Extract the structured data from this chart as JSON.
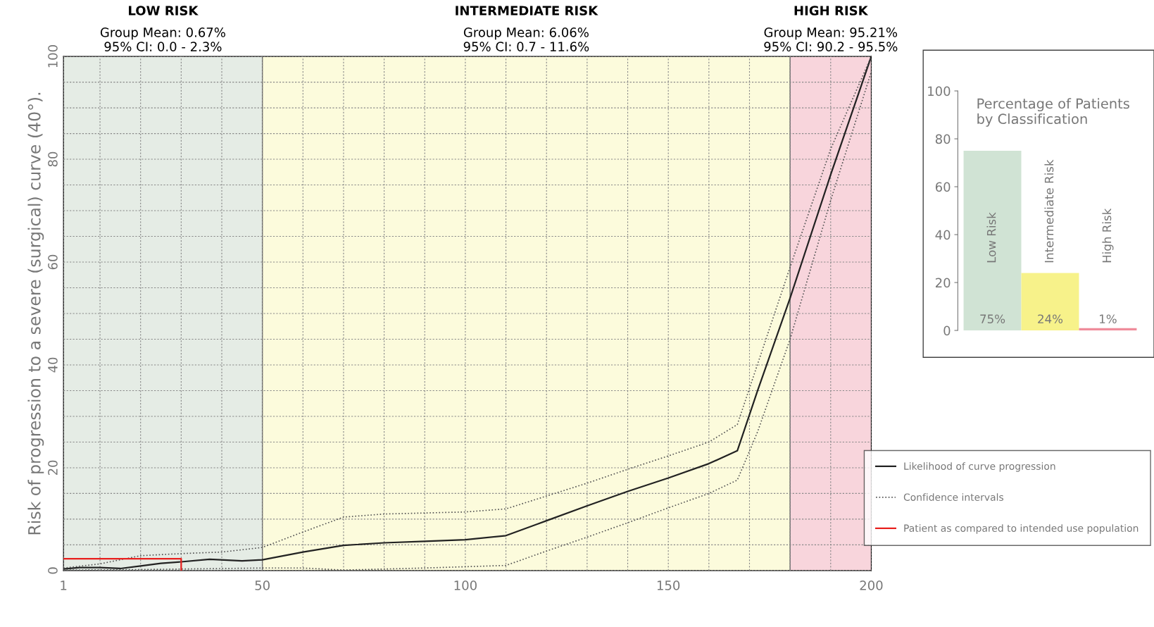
{
  "chart_data": [
    {
      "type": "line",
      "ylabel": "Risk of progression to a severe (surgical) curve (40°).",
      "xlim": [
        1,
        200
      ],
      "xticks": [
        1,
        {
          "value": 10,
          "label": null
        },
        {
          "value": 20,
          "label": null
        },
        {
          "value": 30,
          "label": null
        },
        {
          "value": 40,
          "label": null
        },
        50,
        {
          "value": 60,
          "label": null
        },
        {
          "value": 70,
          "label": null
        },
        {
          "value": 80,
          "label": null
        },
        {
          "value": 90,
          "label": null
        },
        100,
        {
          "value": 110,
          "label": null
        },
        {
          "value": 120,
          "label": null
        },
        {
          "value": 130,
          "label": null
        },
        {
          "value": 140,
          "label": null
        },
        150,
        {
          "value": 160,
          "label": null
        },
        {
          "value": 170,
          "label": null
        },
        {
          "value": 180,
          "label": null
        },
        {
          "value": 190,
          "label": null
        },
        200
      ],
      "ylim": [
        0,
        100
      ],
      "yticks": [
        0,
        {
          "value": 5,
          "label": null
        },
        {
          "value": 10,
          "label": null
        },
        {
          "value": 15,
          "label": null
        },
        20,
        {
          "value": 25,
          "label": null
        },
        {
          "value": 30,
          "label": null
        },
        {
          "value": 35,
          "label": null
        },
        40,
        {
          "value": 45,
          "label": null
        },
        {
          "value": 50,
          "label": null
        },
        {
          "value": 55,
          "label": null
        },
        60,
        {
          "value": 65,
          "label": null
        },
        {
          "value": 70,
          "label": null
        },
        {
          "value": 75,
          "label": null
        },
        80,
        {
          "value": 85,
          "label": null
        },
        {
          "value": 90,
          "label": null
        },
        {
          "value": 95,
          "label": null
        },
        100
      ],
      "grid": true,
      "legend": "right",
      "marker": "none",
      "bands": [
        {
          "axis": "x",
          "from": 1,
          "to": 50,
          "label": "LOW RISK\nGroup Mean: 0.67%\n95% CI: 0.0 - 2.3%",
          "color": "#e5ece5"
        },
        {
          "axis": "x",
          "from": 50,
          "to": 180,
          "label": "INTERMEDIATE RISK\nGroup Mean: 6.06%\n95% CI: 0.7 - 11.6%",
          "color": "#fcfbdc"
        },
        {
          "axis": "x",
          "from": 180,
          "to": 200,
          "label": "HIGH RISK\nGroup Mean: 95.21%\n95% CI: 90.2 - 95.5%",
          "color": "#f8d5dc"
        }
      ],
      "series": [
        {
          "name": "Likelihood of curve progression",
          "color": "#222222",
          "line_style": "solid",
          "x": [
            1,
            5,
            10,
            15,
            20,
            25,
            30,
            37,
            45,
            50,
            60,
            70,
            80,
            90,
            100,
            110,
            120,
            130,
            140,
            150,
            160,
            167,
            172,
            180,
            190,
            200
          ],
          "values": [
            0.3,
            0.6,
            0.6,
            0.4,
            0.9,
            1.4,
            1.7,
            2.2,
            1.9,
            2.1,
            3.6,
            4.9,
            5.4,
            5.7,
            6.0,
            6.8,
            9.7,
            12.6,
            15.4,
            18.0,
            20.8,
            23.3,
            35,
            53,
            77,
            100
          ]
        },
        {
          "name": "Confidence intervals",
          "color": "#555555",
          "line_style": "dotted",
          "x": [
            1,
            10,
            20,
            30,
            40,
            50,
            60,
            70,
            80,
            100,
            110,
            120,
            130,
            140,
            150,
            160,
            167,
            180,
            190,
            200
          ],
          "values": [
            0.5,
            1.3,
            2.9,
            3.3,
            3.6,
            4.5,
            7.5,
            10.4,
            11.0,
            11.4,
            12.0,
            14.5,
            17.0,
            19.7,
            22.3,
            25.0,
            28.4,
            59,
            82,
            100
          ]
        },
        {
          "color": "#555555",
          "line_style": "dotted",
          "x": [
            1,
            20,
            40,
            50,
            60,
            70,
            90,
            110,
            120,
            130,
            140,
            150,
            160,
            167,
            172,
            180,
            190,
            200
          ],
          "values": [
            0.1,
            0.2,
            0.4,
            0.5,
            0.5,
            0.1,
            0.5,
            1.0,
            3.8,
            6.5,
            9.3,
            12.2,
            15.0,
            17.6,
            27,
            45,
            72,
            97
          ]
        },
        {
          "name": "Patient as compared to intended use population",
          "color": "#e8201e",
          "line_style": "solid",
          "x": [
            1,
            30,
            30
          ],
          "values": [
            2.3,
            2.3,
            0
          ]
        }
      ]
    },
    {
      "type": "bar",
      "title": "Percentage of Patients\nby Classification",
      "categories": [
        "Low Risk",
        "Intermediate Risk",
        "High Risk"
      ],
      "values": [
        75,
        24,
        1
      ],
      "colors": [
        "#d0e3d4",
        "#f7f28a",
        "#ef8c9b"
      ],
      "value_labels": [
        "75%",
        "24%",
        "1%"
      ],
      "ylim": [
        0,
        100
      ],
      "yticks": [
        0,
        20,
        40,
        60,
        80,
        100
      ],
      "grid": false
    }
  ]
}
